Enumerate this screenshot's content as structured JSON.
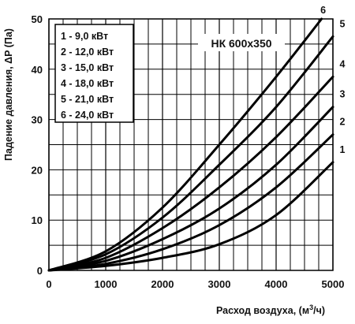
{
  "chart_data": {
    "type": "line",
    "title": "НК 600x350",
    "xlabel": "Расход воздуха, (м³/ч)",
    "ylabel": "Падение давления, ΔP (Па)",
    "xlim": [
      0,
      5000
    ],
    "ylim": [
      0,
      50
    ],
    "x_ticks": [
      "0",
      "1000",
      "2000",
      "3000",
      "4000",
      "5000"
    ],
    "y_ticks": [
      "0",
      "10",
      "20",
      "30",
      "40",
      "50"
    ],
    "grid": true,
    "legend_position": "top-left",
    "legend": [
      "1 -  9,0 кВт",
      "2 - 12,0 кВт",
      "3 - 15,0 кВт",
      "4 - 18,0 кВт",
      "5 - 21,0 кВт",
      "6 - 24,0 кВт"
    ],
    "series": [
      {
        "name": "1",
        "x": [
          0,
          1000,
          2000,
          3000,
          4000,
          5000
        ],
        "y": [
          0,
          0.9,
          2.5,
          5.2,
          11.0,
          21.5
        ]
      },
      {
        "name": "2",
        "x": [
          0,
          1000,
          2000,
          3000,
          4000,
          5000
        ],
        "y": [
          0,
          1.3,
          4.2,
          9.0,
          16.5,
          27.0
        ]
      },
      {
        "name": "3",
        "x": [
          0,
          1000,
          2000,
          3000,
          4000,
          5000
        ],
        "y": [
          0,
          1.9,
          6.2,
          12.3,
          21.0,
          32.5
        ]
      },
      {
        "name": "4",
        "x": [
          0,
          1000,
          2000,
          3000,
          4000,
          5000
        ],
        "y": [
          0,
          2.5,
          8.4,
          16.5,
          26.5,
          38.5
        ]
      },
      {
        "name": "5",
        "x": [
          0,
          1000,
          2000,
          3000,
          4000,
          5000
        ],
        "y": [
          0,
          3.2,
          10.5,
          21.0,
          32.5,
          46.5
        ]
      },
      {
        "name": "6",
        "x": [
          0,
          1000,
          2000,
          3000,
          4000,
          4800
        ],
        "y": [
          0,
          3.8,
          12.5,
          25.0,
          38.5,
          50.0
        ]
      }
    ]
  }
}
